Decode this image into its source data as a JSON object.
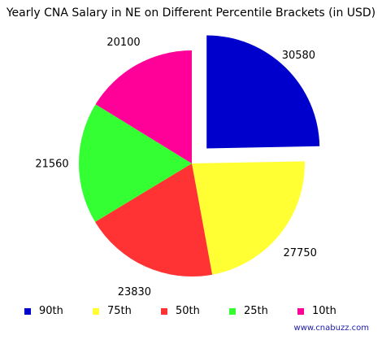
{
  "chart_data": {
    "type": "pie",
    "title": "Yearly CNA Salary in NE on Different Percentile Brackets (in USD)",
    "exploded": "90th",
    "slices": [
      {
        "name": "90th",
        "value": 30580,
        "color": "#0000cc"
      },
      {
        "name": "75th",
        "value": 27750,
        "color": "#ffff33"
      },
      {
        "name": "50th",
        "value": 23830,
        "color": "#ff3333"
      },
      {
        "name": "25th",
        "value": 21560,
        "color": "#33ff33"
      },
      {
        "name": "10th",
        "value": 20100,
        "color": "#ff0099"
      }
    ],
    "legend_position": "bottom"
  },
  "credit": "www.cnabuzz.com"
}
